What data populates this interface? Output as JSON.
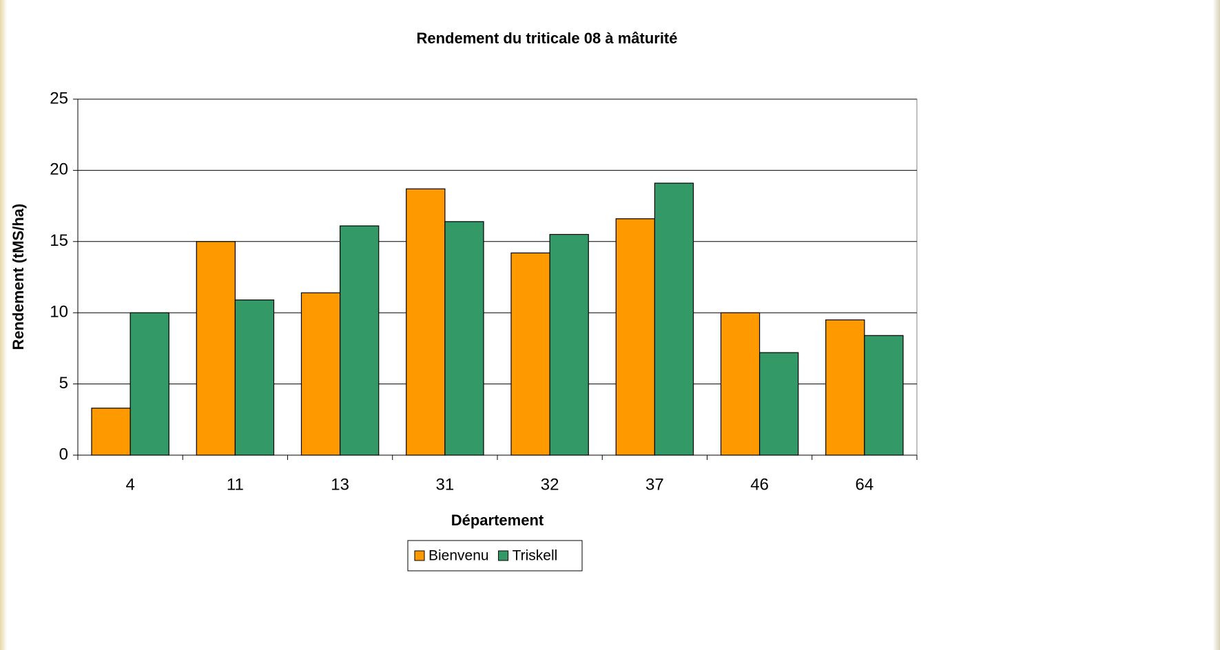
{
  "chart_data": {
    "type": "bar",
    "title": "Rendement du triticale 08 à mâturité",
    "x_label": "Département",
    "y_label": "Rendement (tMS/ha)",
    "categories": [
      "4",
      "11",
      "13",
      "31",
      "32",
      "37",
      "46",
      "64"
    ],
    "series": [
      {
        "name": "Bienvenu",
        "color": "#ff9900",
        "values": [
          3.3,
          15.0,
          11.4,
          18.7,
          14.2,
          16.6,
          10.0,
          9.5
        ]
      },
      {
        "name": "Triskell",
        "color": "#339966",
        "values": [
          10.0,
          10.9,
          16.1,
          16.4,
          15.5,
          19.1,
          7.2,
          8.4
        ]
      }
    ],
    "ylim": [
      0,
      25
    ],
    "yticks": [
      0,
      5,
      10,
      15,
      20,
      25
    ],
    "grid": true,
    "legend": "bottom"
  }
}
